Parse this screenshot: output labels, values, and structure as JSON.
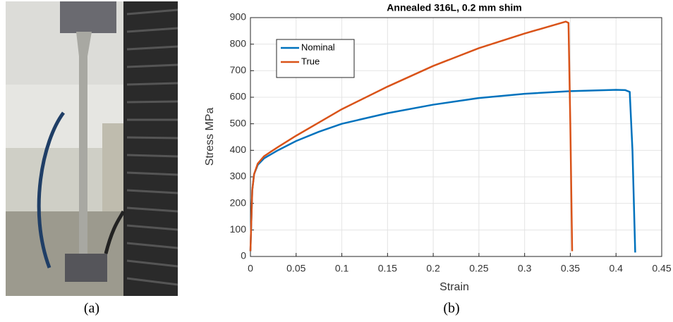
{
  "captions": [
    "(a)",
    "(b)"
  ],
  "chart_data": {
    "type": "line",
    "title": "Annealed 316L, 0.2 mm shim",
    "x_label": "Strain",
    "y_label": "Stress MPa",
    "xlim": [
      0,
      0.45
    ],
    "ylim": [
      0,
      900
    ],
    "xticks": [
      0,
      0.05,
      0.1,
      0.15,
      0.2,
      0.25,
      0.3,
      0.35,
      0.4,
      0.45
    ],
    "yticks": [
      0,
      100,
      200,
      300,
      400,
      500,
      600,
      700,
      800,
      900
    ],
    "grid": true,
    "legend": "upper left",
    "series": [
      {
        "name": "Nominal",
        "color": "#0072bd",
        "x": [
          0,
          0.002,
          0.004,
          0.008,
          0.015,
          0.03,
          0.05,
          0.075,
          0.1,
          0.15,
          0.2,
          0.25,
          0.3,
          0.35,
          0.4,
          0.41,
          0.415,
          0.418,
          0.421
        ],
        "values": [
          20,
          250,
          310,
          345,
          370,
          400,
          435,
          470,
          500,
          540,
          572,
          597,
          613,
          623,
          628,
          627,
          620,
          400,
          15
        ]
      },
      {
        "name": "True",
        "color": "#d95319",
        "x": [
          0,
          0.002,
          0.004,
          0.008,
          0.015,
          0.03,
          0.05,
          0.075,
          0.1,
          0.15,
          0.2,
          0.25,
          0.3,
          0.34,
          0.345,
          0.348,
          0.35,
          0.352
        ],
        "values": [
          20,
          250,
          310,
          350,
          378,
          412,
          455,
          505,
          555,
          640,
          718,
          785,
          840,
          880,
          885,
          880,
          500,
          20
        ]
      }
    ]
  }
}
